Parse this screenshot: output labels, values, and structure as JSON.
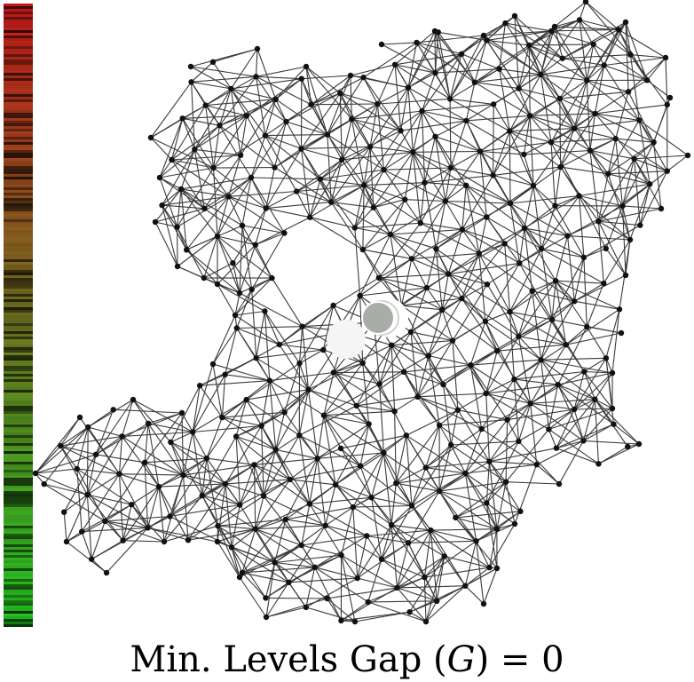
{
  "caption": {
    "prefix": "Min. Levels Gap (",
    "variable": "G",
    "suffix": ") = 0"
  },
  "colors": {
    "edge": "#3a3a3a",
    "node": "#111111",
    "highlight_gray": "#a8ada8",
    "highlight_white": "#f4f5f4",
    "colorbar_top": "#cc1a1a",
    "colorbar_mid": "#7a6a20",
    "colorbar_bottom": "#22cc22"
  },
  "graph": {
    "type": "network",
    "description_shape": "lattice-like node-link diagram",
    "highlighted_nodes": [
      "white-disc",
      "gray-disc"
    ]
  }
}
